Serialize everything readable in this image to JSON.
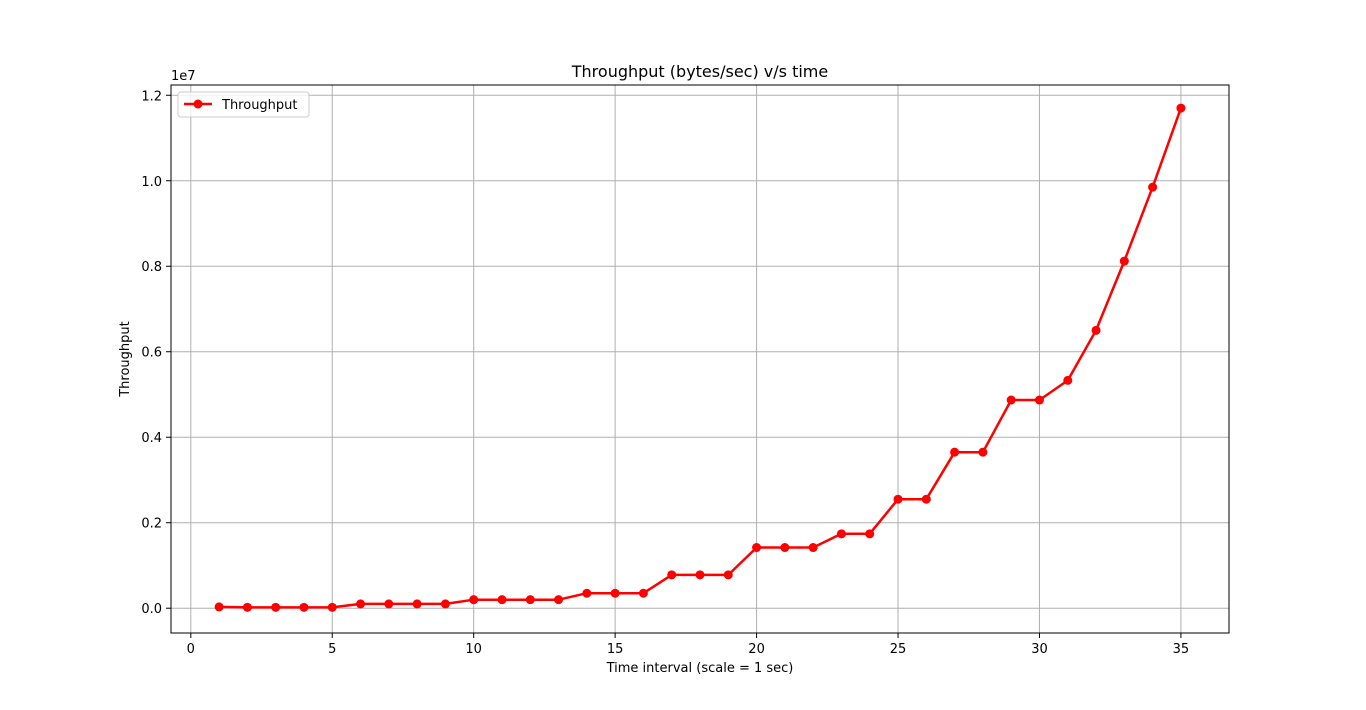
{
  "chart_data": {
    "type": "line",
    "title": "Throughput (bytes/sec) v/s time",
    "xlabel": "Time interval (scale = 1 sec)",
    "ylabel": "Throughput",
    "y_offset_label": "1e7",
    "xlim": [
      -0.7,
      36.7
    ],
    "ylim": [
      -0.58,
      12.24
    ],
    "xticks": [
      0,
      5,
      10,
      15,
      20,
      25,
      30,
      35
    ],
    "xtick_labels": [
      "0",
      "5",
      "10",
      "15",
      "20",
      "25",
      "30",
      "35"
    ],
    "yticks": [
      0,
      2,
      4,
      6,
      8,
      10,
      12
    ],
    "ytick_labels": [
      "0.0",
      "0.2",
      "0.4",
      "0.6",
      "0.8",
      "1.0",
      "1.2"
    ],
    "grid": true,
    "legend_position": "upper-left",
    "series": [
      {
        "name": "Throughput",
        "color": "#ff0000",
        "marker": "circle",
        "x": [
          1,
          2,
          3,
          4,
          5,
          6,
          7,
          8,
          9,
          10,
          11,
          12,
          13,
          14,
          15,
          16,
          17,
          18,
          19,
          20,
          21,
          22,
          23,
          24,
          25,
          26,
          27,
          28,
          29,
          30,
          31,
          32,
          33,
          34,
          35
        ],
        "y": [
          0.03,
          0.02,
          0.02,
          0.02,
          0.02,
          0.1,
          0.1,
          0.1,
          0.1,
          0.2,
          0.2,
          0.2,
          0.2,
          0.35,
          0.35,
          0.35,
          0.78,
          0.78,
          0.78,
          1.42,
          1.42,
          1.42,
          1.74,
          1.74,
          2.55,
          2.55,
          3.65,
          3.65,
          4.87,
          4.87,
          5.33,
          6.5,
          8.12,
          9.85,
          11.7
        ]
      }
    ]
  }
}
